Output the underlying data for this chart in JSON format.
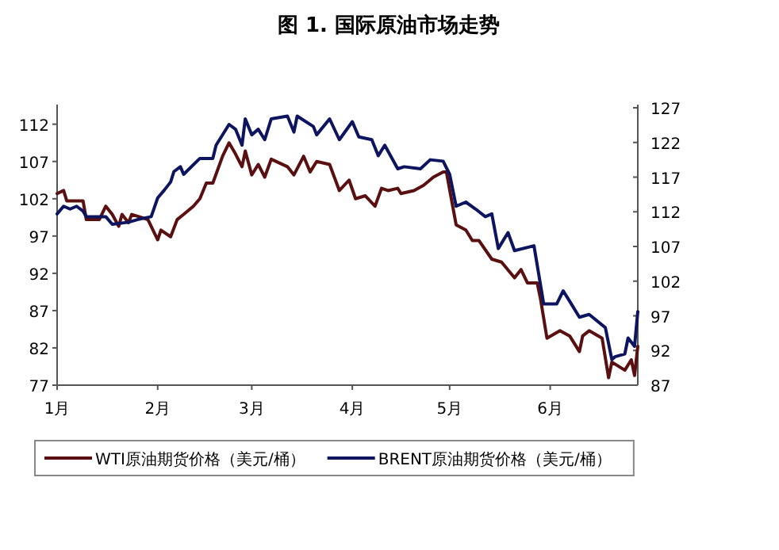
{
  "chart_data": {
    "type": "line",
    "title": "图 1. 国际原油市场走势",
    "xlim": [
      "--01-01",
      "--06-28"
    ],
    "xticks": [
      {
        "value": "--01-01",
        "label": "1月"
      },
      {
        "value": "--02-01",
        "label": "2月"
      },
      {
        "value": "--03-01",
        "label": "3月"
      },
      {
        "value": "--04-01",
        "label": "4月"
      },
      {
        "value": "--05-01",
        "label": "5月"
      },
      {
        "value": "--06-01",
        "label": "6月"
      }
    ],
    "ylim": [
      77,
      114.2
    ],
    "yticks": [
      77,
      82,
      87,
      92,
      97,
      102,
      107,
      112
    ],
    "y2lim": [
      87,
      127
    ],
    "y2ticks": [
      87,
      92,
      97,
      102,
      107,
      112,
      117,
      122,
      127
    ],
    "legend": "bottom",
    "grid": false,
    "series": [
      {
        "name": "WTI原油期货价格（美元/桶）",
        "color": "#5a1010",
        "axis": "y",
        "x": [
          "--01-01",
          "--01-03",
          "--01-04",
          "--01-09",
          "--01-10",
          "--01-14",
          "--01-16",
          "--01-18",
          "--01-20",
          "--01-21",
          "--01-23",
          "--01-24",
          "--01-27",
          "--01-29",
          "--02-01",
          "--02-02",
          "--02-05",
          "--02-07",
          "--02-09",
          "--02-12",
          "--02-14",
          "--02-16",
          "--02-18",
          "--02-21",
          "--02-23",
          "--02-25",
          "--02-27",
          "--02-28",
          "--03-01",
          "--03-03",
          "--03-05",
          "--03-07",
          "--03-12",
          "--03-14",
          "--03-17",
          "--03-19",
          "--03-21",
          "--03-25",
          "--03-28",
          "--03-31",
          "--04-02",
          "--04-05",
          "--04-08",
          "--04-10",
          "--04-12",
          "--04-15",
          "--04-16",
          "--04-20",
          "--04-23",
          "--04-26",
          "--04-29",
          "--04-30",
          "--05-03",
          "--05-06",
          "--05-08",
          "--05-10",
          "--05-14",
          "--05-17",
          "--05-21",
          "--05-23",
          "--05-25",
          "--05-28",
          "--05-29",
          "--05-31",
          "--06-04",
          "--06-07",
          "--06-10",
          "--06-11",
          "--06-13",
          "--06-17",
          "--06-19",
          "--06-20",
          "--06-24",
          "--06-26",
          "--06-27",
          "--06-28"
        ],
        "values": [
          102.7,
          103.1,
          101.7,
          101.7,
          99.2,
          99.2,
          101.0,
          99.9,
          98.3,
          99.9,
          98.8,
          99.9,
          99.5,
          99.2,
          96.5,
          97.8,
          96.9,
          99.2,
          99.9,
          101.0,
          102.0,
          104.1,
          104.1,
          107.7,
          109.5,
          108.0,
          106.3,
          108.4,
          105.2,
          106.6,
          104.9,
          107.3,
          106.3,
          105.2,
          107.7,
          105.6,
          107.0,
          106.6,
          103.1,
          104.5,
          102.0,
          102.4,
          101.0,
          103.4,
          103.1,
          103.4,
          102.7,
          103.1,
          103.8,
          104.9,
          105.6,
          105.6,
          98.5,
          97.8,
          96.4,
          96.4,
          93.9,
          93.5,
          91.4,
          92.5,
          90.7,
          90.7,
          88.6,
          83.3,
          84.3,
          83.6,
          81.5,
          83.6,
          84.3,
          83.3,
          78.0,
          80.1,
          79.0,
          80.4,
          78.3,
          82.2
        ]
      },
      {
        "name": "BRENT原油期货价格（美元/桶）",
        "color": "#0d1560",
        "axis": "y2",
        "x": [
          "--01-01",
          "--01-03",
          "--01-05",
          "--01-07",
          "--01-09",
          "--01-10",
          "--01-16",
          "--01-18",
          "--01-23",
          "--01-26",
          "--01-30",
          "--02-01",
          "--02-03",
          "--02-05",
          "--02-06",
          "--02-08",
          "--02-09",
          "--02-14",
          "--02-18",
          "--02-19",
          "--02-23",
          "--02-25",
          "--02-27",
          "--02-28",
          "--03-01",
          "--03-03",
          "--03-05",
          "--03-07",
          "--03-12",
          "--03-14",
          "--03-15",
          "--03-20",
          "--03-21",
          "--03-25",
          "--03-28",
          "--04-01",
          "--04-03",
          "--04-07",
          "--04-09",
          "--04-11",
          "--04-15",
          "--04-17",
          "--04-22",
          "--04-25",
          "--04-29",
          "--05-01",
          "--05-03",
          "--05-06",
          "--05-09",
          "--05-12",
          "--05-14",
          "--05-16",
          "--05-19",
          "--05-21",
          "--05-27",
          "--05-30",
          "--06-03",
          "--06-05",
          "--06-07",
          "--06-10",
          "--06-13",
          "--06-18",
          "--06-20",
          "--06-21",
          "--06-24",
          "--06-25",
          "--06-27",
          "--06-28"
        ],
        "values": [
          111.7,
          112.8,
          112.4,
          112.8,
          112.1,
          111.3,
          111.3,
          110.2,
          110.5,
          110.9,
          111.3,
          114.0,
          115.1,
          116.3,
          117.8,
          118.5,
          117.4,
          119.7,
          119.7,
          121.6,
          124.6,
          123.9,
          121.6,
          125.4,
          123.1,
          123.9,
          122.4,
          125.4,
          125.8,
          123.5,
          125.8,
          124.3,
          123.1,
          125.4,
          122.4,
          125.0,
          122.8,
          122.4,
          120.1,
          121.6,
          118.2,
          118.5,
          118.2,
          119.5,
          119.3,
          117.4,
          112.8,
          113.4,
          112.4,
          111.3,
          111.7,
          106.7,
          109.0,
          106.4,
          107.1,
          98.7,
          98.7,
          100.6,
          99.1,
          96.8,
          97.2,
          95.3,
          90.7,
          91.1,
          91.5,
          93.8,
          92.6,
          97.6
        ]
      }
    ]
  }
}
